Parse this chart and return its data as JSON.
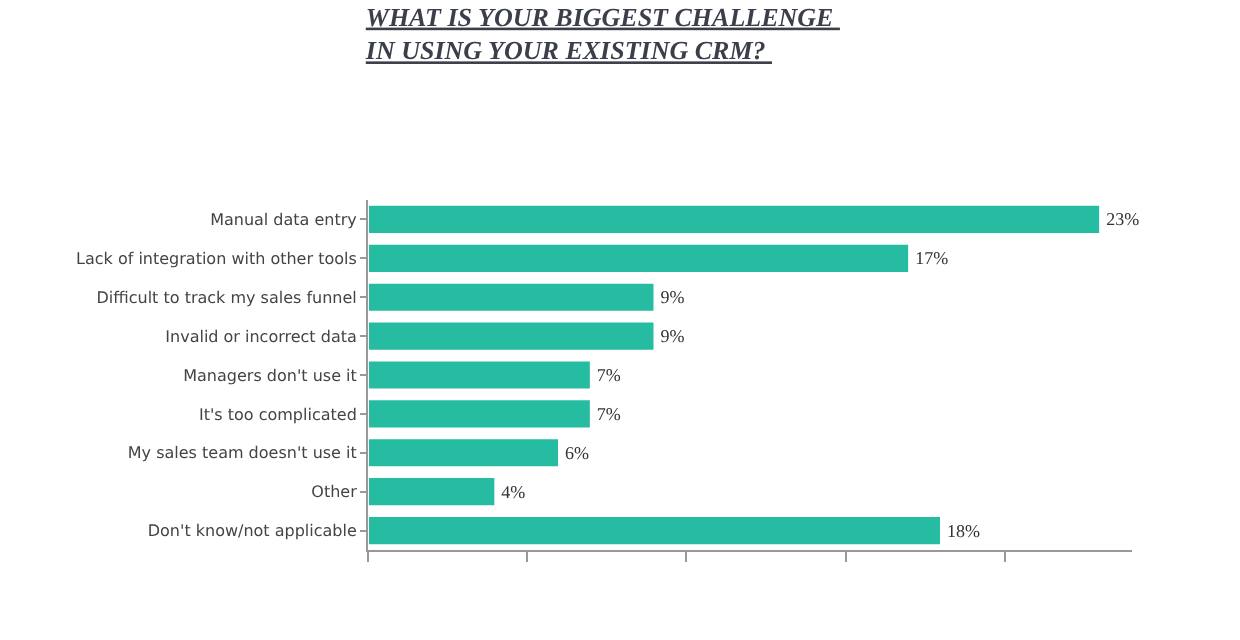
{
  "chart_data": {
    "type": "bar",
    "orientation": "horizontal",
    "title": "WHAT IS YOUR BIGGEST CHALLENGE \nIN USING YOUR EXISTING CRM? ",
    "categories": [
      "Manual data entry",
      "Lack of integration with other tools",
      "Difficult to track my sales funnel",
      "Invalid or incorrect data",
      "Managers don't use it",
      "It's too complicated",
      "My sales team doesn't use it",
      "Other",
      "Don't know/not applicable"
    ],
    "values": [
      23,
      17,
      9,
      9,
      7,
      7,
      6,
      4,
      18
    ],
    "value_labels": [
      "23%",
      "17%",
      "9%",
      "9%",
      "7%",
      "7%",
      "6%",
      "4%",
      "18%"
    ],
    "color": "#26bca1",
    "xlim": [
      0,
      24
    ],
    "xticks": [
      {
        "value": 0,
        "label": null
      },
      {
        "value": 5,
        "label": null
      },
      {
        "value": 10,
        "label": null
      },
      {
        "value": 15,
        "label": null
      },
      {
        "value": 20,
        "label": null
      }
    ],
    "tick_labels": "y"
  }
}
